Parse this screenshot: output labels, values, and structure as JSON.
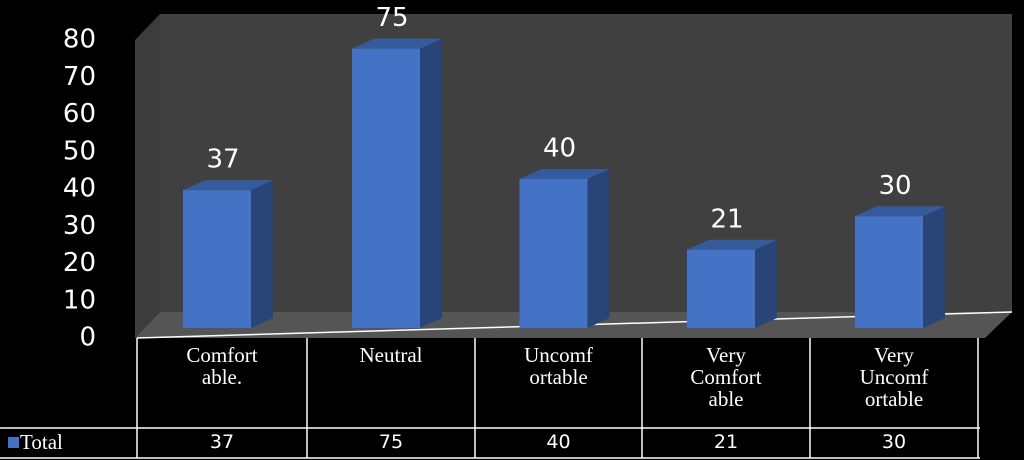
{
  "chart_data": {
    "type": "bar3d",
    "categories": [
      "Comfort able.",
      "Neutral",
      "Uncomf ortable",
      "Very Comfort able",
      "Very Uncomf ortable"
    ],
    "series": [
      {
        "name": "Total",
        "color": "#4472c4",
        "values": [
          37,
          75,
          40,
          21,
          30
        ]
      }
    ],
    "ylim": [
      0,
      80
    ],
    "yticks": [
      0,
      10,
      20,
      30,
      40,
      50,
      60,
      70,
      80
    ],
    "grid": false,
    "data_table": true
  }
}
